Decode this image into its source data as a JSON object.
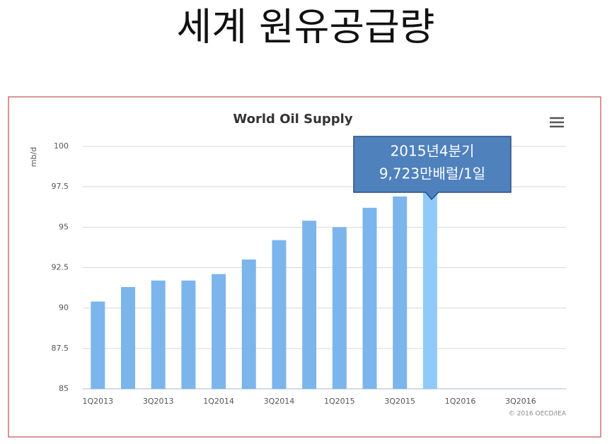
{
  "slide_title": "세계 원유공급량",
  "chart_data": {
    "type": "bar",
    "title": "World Oil Supply",
    "y_label": "mb/d",
    "categories": [
      "1Q2013",
      null,
      "3Q2013",
      null,
      "1Q2014",
      null,
      "3Q2014",
      null,
      "1Q2015",
      null,
      "3Q2015",
      null,
      "1Q2016",
      null,
      "3Q2016",
      null
    ],
    "values": [
      90.4,
      91.3,
      91.7,
      91.7,
      92.1,
      93.0,
      94.2,
      95.4,
      95.0,
      96.2,
      96.9,
      97.23,
      null,
      null,
      null,
      null
    ],
    "color": "#7cb5ec",
    "ylim": [
      85,
      100
    ],
    "yticks": [
      85,
      87.5,
      90,
      92.5,
      95,
      97.5,
      100
    ],
    "grid": true,
    "tooltip": {
      "point": 11,
      "color": "#90caf9",
      "lines": [
        "2015년4분기",
        "9,723만배럴/1일"
      ]
    },
    "credit": "© 2016 OECD/IEA"
  }
}
